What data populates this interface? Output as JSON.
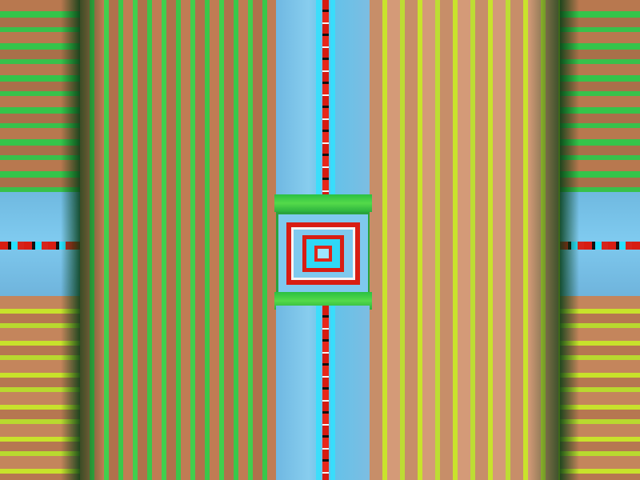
{
  "scene": {
    "palette": {
      "soil": "#b8784f",
      "crop_green": "#39c84a",
      "crop_yellow": "#c9e32c",
      "water": "#7fc9ee",
      "red_path": "#d81d12",
      "cyan_path": "#2ee4ff",
      "shadow": "#0a3c14"
    },
    "regions": {
      "left_panel": "farmland-strip-left",
      "right_panel": "farmland-strip-right",
      "center": "river-crossing-plaza"
    }
  }
}
